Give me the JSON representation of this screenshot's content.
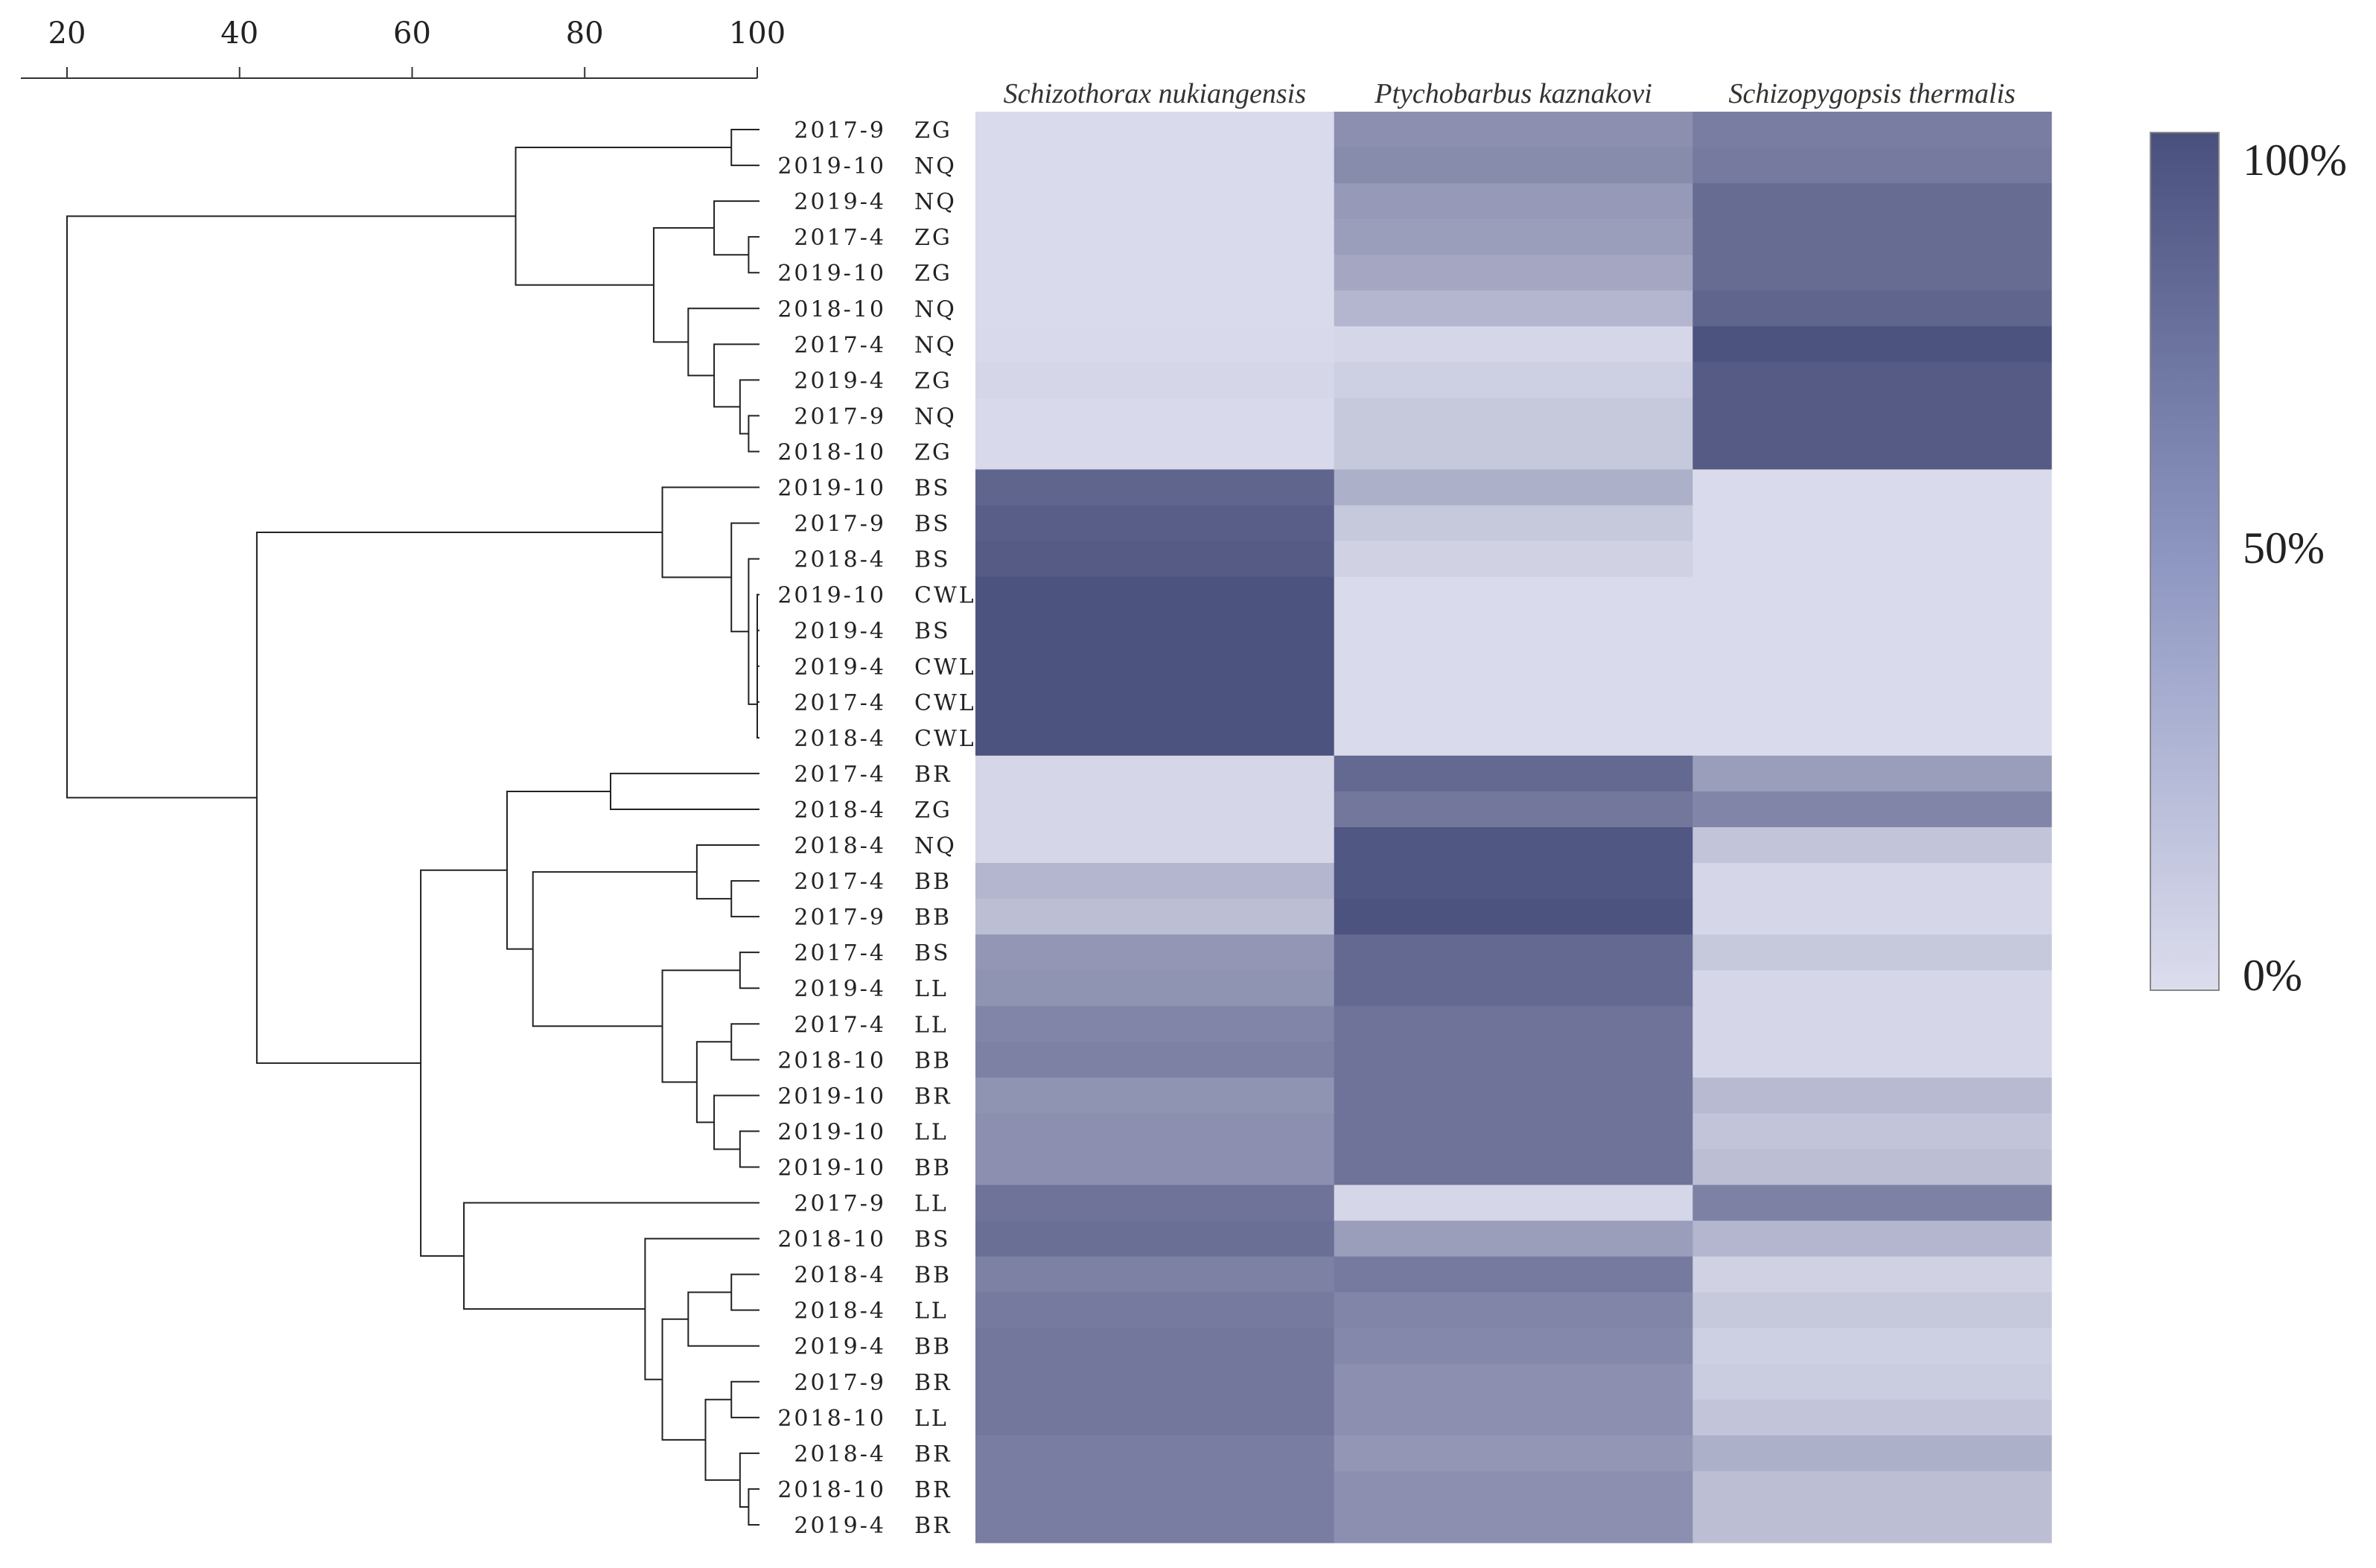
{
  "chart_data": {
    "type": "heatmap",
    "title": "",
    "columns": [
      "Schizothorax nukiangensis",
      "Ptychobarbus kaznakovi",
      "Schizopygopsis thermalis"
    ],
    "rows": [
      {
        "date": "2017-9",
        "site": "ZG",
        "values": [
          2,
          55,
          68
        ]
      },
      {
        "date": "2019-10",
        "site": "NQ",
        "values": [
          2,
          58,
          70
        ]
      },
      {
        "date": "2019-4",
        "site": "NQ",
        "values": [
          2,
          48,
          80
        ]
      },
      {
        "date": "2017-4",
        "site": "ZG",
        "values": [
          2,
          45,
          80
        ]
      },
      {
        "date": "2019-10",
        "site": "ZG",
        "values": [
          2,
          38,
          80
        ]
      },
      {
        "date": "2018-10",
        "site": "NQ",
        "values": [
          2,
          28,
          85
        ]
      },
      {
        "date": "2017-4",
        "site": "NQ",
        "values": [
          3,
          5,
          98
        ]
      },
      {
        "date": "2019-4",
        "site": "ZG",
        "values": [
          5,
          10,
          92
        ]
      },
      {
        "date": "2017-9",
        "site": "NQ",
        "values": [
          3,
          15,
          92
        ]
      },
      {
        "date": "2018-10",
        "site": "ZG",
        "values": [
          3,
          15,
          92
        ]
      },
      {
        "date": "2019-10",
        "site": "BS",
        "values": [
          85,
          32,
          2
        ]
      },
      {
        "date": "2017-9",
        "site": "BS",
        "values": [
          90,
          15,
          2
        ]
      },
      {
        "date": "2018-4",
        "site": "BS",
        "values": [
          92,
          8,
          2
        ]
      },
      {
        "date": "2019-10",
        "site": "CWL",
        "values": [
          98,
          2,
          2
        ]
      },
      {
        "date": "2019-4",
        "site": "BS",
        "values": [
          98,
          2,
          2
        ]
      },
      {
        "date": "2019-4",
        "site": "CWL",
        "values": [
          98,
          2,
          2
        ]
      },
      {
        "date": "2017-4",
        "site": "CWL",
        "values": [
          98,
          2,
          2
        ]
      },
      {
        "date": "2018-4",
        "site": "CWL",
        "values": [
          98,
          2,
          2
        ]
      },
      {
        "date": "2017-4",
        "site": "BR",
        "values": [
          5,
          82,
          45
        ]
      },
      {
        "date": "2018-4",
        "site": "ZG",
        "values": [
          5,
          72,
          62
        ]
      },
      {
        "date": "2018-4",
        "site": "NQ",
        "values": [
          5,
          95,
          18
        ]
      },
      {
        "date": "2017-4",
        "site": "BB",
        "values": [
          28,
          95,
          5
        ]
      },
      {
        "date": "2017-9",
        "site": "BB",
        "values": [
          22,
          98,
          5
        ]
      },
      {
        "date": "2017-4",
        "site": "BS",
        "values": [
          50,
          82,
          15
        ]
      },
      {
        "date": "2019-4",
        "site": "LL",
        "values": [
          52,
          82,
          5
        ]
      },
      {
        "date": "2017-4",
        "site": "LL",
        "values": [
          62,
          75,
          5
        ]
      },
      {
        "date": "2018-10",
        "site": "BB",
        "values": [
          65,
          75,
          5
        ]
      },
      {
        "date": "2019-10",
        "site": "BR",
        "values": [
          52,
          75,
          25
        ]
      },
      {
        "date": "2019-10",
        "site": "LL",
        "values": [
          55,
          75,
          18
        ]
      },
      {
        "date": "2019-10",
        "site": "BB",
        "values": [
          55,
          75,
          22
        ]
      },
      {
        "date": "2017-9",
        "site": "LL",
        "values": [
          75,
          5,
          65
        ]
      },
      {
        "date": "2018-10",
        "site": "BS",
        "values": [
          78,
          45,
          28
        ]
      },
      {
        "date": "2018-4",
        "site": "BB",
        "values": [
          65,
          70,
          8
        ]
      },
      {
        "date": "2018-4",
        "site": "LL",
        "values": [
          70,
          62,
          15
        ]
      },
      {
        "date": "2019-4",
        "site": "BB",
        "values": [
          72,
          60,
          10
        ]
      },
      {
        "date": "2017-9",
        "site": "BR",
        "values": [
          72,
          55,
          12
        ]
      },
      {
        "date": "2018-10",
        "site": "LL",
        "values": [
          72,
          55,
          18
        ]
      },
      {
        "date": "2018-4",
        "site": "BR",
        "values": [
          68,
          50,
          32
        ]
      },
      {
        "date": "2018-10",
        "site": "BR",
        "values": [
          68,
          55,
          22
        ]
      },
      {
        "date": "2019-4",
        "site": "BR",
        "values": [
          68,
          55,
          22
        ]
      }
    ],
    "dendrogram": {
      "axis": {
        "ticks": [
          20,
          40,
          60,
          80,
          100
        ],
        "range": [
          15,
          100
        ]
      },
      "merges": [
        {
          "a": 0,
          "b": 1,
          "h": 97
        },
        {
          "a": 3,
          "b": 4,
          "h": 99
        },
        {
          "a": 2,
          "b": "c1",
          "h": 95
        },
        {
          "a": 8,
          "b": 9,
          "h": 99
        },
        {
          "a": 7,
          "b": "c3",
          "h": 98
        },
        {
          "a": 6,
          "b": "c4",
          "h": 95
        },
        {
          "a": 5,
          "b": "c5",
          "h": 92
        },
        {
          "a": "c2",
          "b": "c6",
          "h": 88
        },
        {
          "a": "c0",
          "b": "c7",
          "h": 72
        },
        {
          "a": 13,
          "b": 14,
          "h": 100
        },
        {
          "a": "c9",
          "b": 15,
          "h": 100
        },
        {
          "a": "c10",
          "b": 16,
          "h": 100
        },
        {
          "a": "c11",
          "b": 17,
          "h": 100
        },
        {
          "a": 12,
          "b": "c12",
          "h": 99
        },
        {
          "a": 11,
          "b": "c13",
          "h": 97
        },
        {
          "a": 10,
          "b": "c14",
          "h": 89
        },
        {
          "a": 18,
          "b": 19,
          "h": 83
        },
        {
          "a": 21,
          "b": 22,
          "h": 97
        },
        {
          "a": 20,
          "b": "c17",
          "h": 93
        },
        {
          "a": 23,
          "b": 24,
          "h": 98
        },
        {
          "a": 25,
          "b": 26,
          "h": 97
        },
        {
          "a": 28,
          "b": 29,
          "h": 98
        },
        {
          "a": 27,
          "b": "c21",
          "h": 95
        },
        {
          "a": "c20",
          "b": "c22",
          "h": 93
        },
        {
          "a": "c19",
          "b": "c23",
          "h": 89
        },
        {
          "a": "c18",
          "b": "c24",
          "h": 74
        },
        {
          "a": "c16",
          "b": "c25",
          "h": 71
        },
        {
          "a": 32,
          "b": 33,
          "h": 97
        },
        {
          "a": 34,
          "b": "c27",
          "h": 92
        },
        {
          "a": 35,
          "b": 36,
          "h": 97
        },
        {
          "a": 38,
          "b": 39,
          "h": 99
        },
        {
          "a": 37,
          "b": "c30",
          "h": 98
        },
        {
          "a": "c29",
          "b": "c31",
          "h": 94
        },
        {
          "a": "c28",
          "b": "c32",
          "h": 89
        },
        {
          "a": 31,
          "b": "c33",
          "h": 87
        },
        {
          "a": 30,
          "b": "c34",
          "h": 66
        },
        {
          "a": "c26",
          "b": "c35",
          "h": 61
        },
        {
          "a": "c15",
          "b": "c36",
          "h": 42
        },
        {
          "a": "c8",
          "b": "c37",
          "h": 20
        }
      ]
    },
    "colorbar": {
      "labels": [
        "100%",
        "50%",
        "0%"
      ],
      "low_color": "#dcdded",
      "high_color": "#4a507d"
    }
  }
}
